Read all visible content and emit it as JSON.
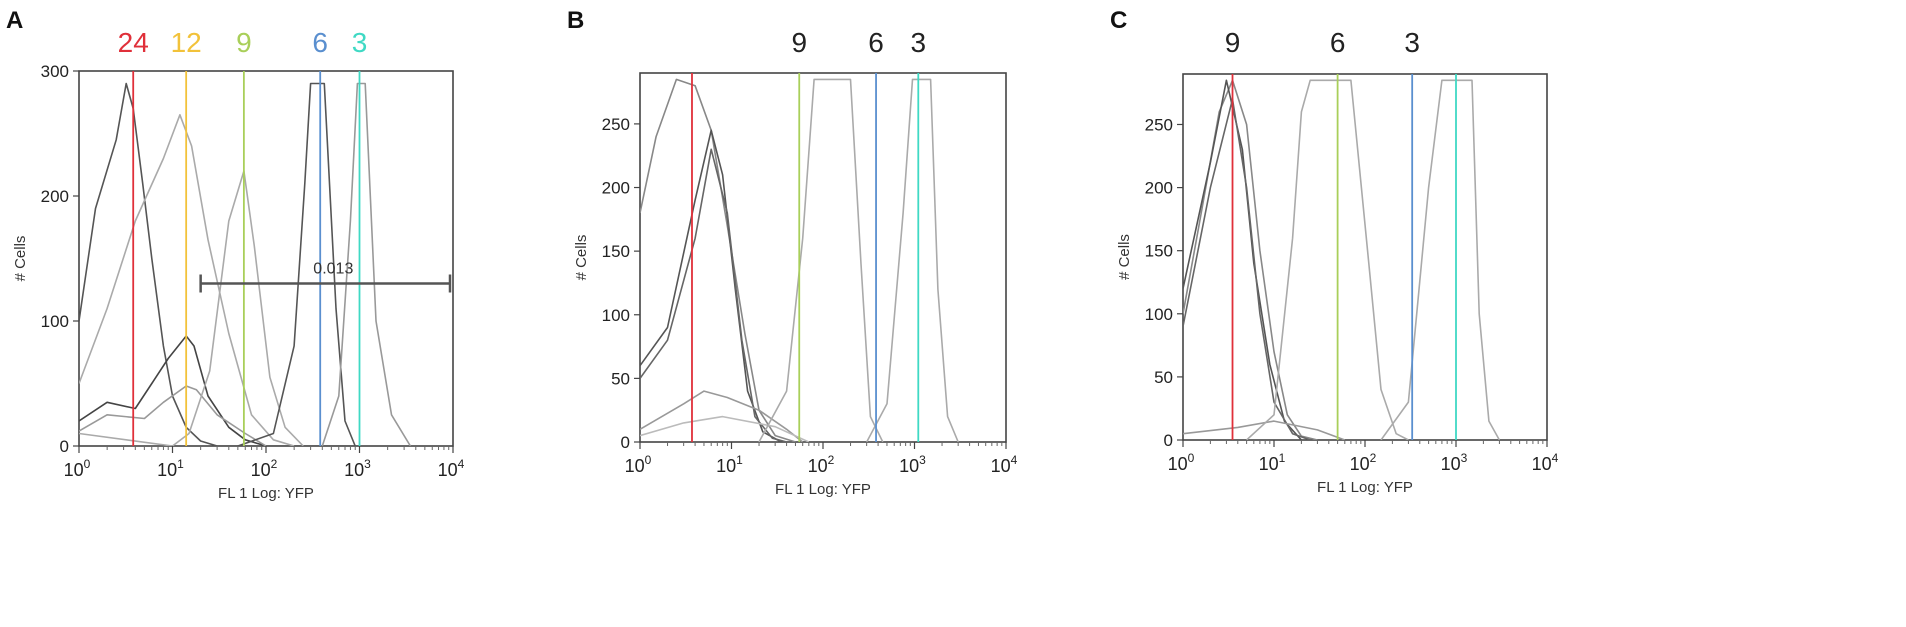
{
  "chart_data": [
    {
      "panel_label": "A",
      "type": "line",
      "xscale": "log",
      "xlim": [
        1,
        10000
      ],
      "ylim": [
        0,
        300
      ],
      "xlabel": "FL 1 Log: YFP",
      "ylabel": "# Cells",
      "x_tick_labels": [
        "10^0",
        "10^1",
        "10^2",
        "10^3",
        "10^4"
      ],
      "y_ticks": [
        0,
        100,
        200,
        300
      ],
      "markers": [
        {
          "label": "24",
          "x": 3.8,
          "color": "#e0303a"
        },
        {
          "label": "12",
          "x": 14,
          "color": "#f2c23a"
        },
        {
          "label": "9",
          "x": 58,
          "color": "#a9cf5a"
        },
        {
          "label": "6",
          "x": 380,
          "color": "#5a8fcf"
        },
        {
          "label": "3",
          "x": 1000,
          "color": "#3fd9c4"
        }
      ],
      "gate": {
        "label": "0.013",
        "x_start": 20,
        "x_end": 10000,
        "y": 130
      },
      "series": [
        {
          "color": "#555555",
          "points": [
            [
              1,
              100
            ],
            [
              1.5,
              190
            ],
            [
              2.5,
              245
            ],
            [
              3.2,
              290
            ],
            [
              3.8,
              270
            ],
            [
              4.8,
              210
            ],
            [
              6,
              150
            ],
            [
              8,
              80
            ],
            [
              10,
              40
            ],
            [
              14,
              15
            ],
            [
              20,
              4
            ],
            [
              30,
              0
            ],
            [
              1000,
              0
            ]
          ]
        },
        {
          "color": "#444444",
          "points": [
            [
              1,
              20
            ],
            [
              2,
              35
            ],
            [
              4,
              30
            ],
            [
              6,
              50
            ],
            [
              9,
              70
            ],
            [
              14,
              88
            ],
            [
              17,
              80
            ],
            [
              24,
              40
            ],
            [
              40,
              15
            ],
            [
              60,
              5
            ],
            [
              100,
              0
            ]
          ]
        },
        {
          "color": "#999999",
          "points": [
            [
              1,
              12
            ],
            [
              2,
              25
            ],
            [
              5,
              22
            ],
            [
              8,
              35
            ],
            [
              14,
              48
            ],
            [
              18,
              45
            ],
            [
              30,
              25
            ],
            [
              60,
              10
            ],
            [
              100,
              0
            ]
          ]
        },
        {
          "color": "#aaaaaa",
          "points": [
            [
              1,
              50
            ],
            [
              2,
              110
            ],
            [
              4,
              180
            ],
            [
              8,
              230
            ],
            [
              12,
              265
            ],
            [
              16,
              240
            ],
            [
              24,
              165
            ],
            [
              40,
              90
            ],
            [
              70,
              25
            ],
            [
              120,
              5
            ],
            [
              200,
              0
            ]
          ]
        },
        {
          "color": "#aaaaaa",
          "points": [
            [
              1,
              10
            ],
            [
              10,
              0
            ],
            [
              15,
              10
            ],
            [
              25,
              60
            ],
            [
              40,
              180
            ],
            [
              58,
              220
            ],
            [
              75,
              160
            ],
            [
              110,
              55
            ],
            [
              160,
              15
            ],
            [
              250,
              0
            ]
          ]
        },
        {
          "color": "#555555",
          "points": [
            [
              50,
              0
            ],
            [
              120,
              10
            ],
            [
              200,
              80
            ],
            [
              260,
              210
            ],
            [
              300,
              290
            ],
            [
              420,
              290
            ],
            [
              560,
              110
            ],
            [
              700,
              20
            ],
            [
              900,
              0
            ]
          ]
        },
        {
          "color": "#999999",
          "points": [
            [
              400,
              0
            ],
            [
              600,
              40
            ],
            [
              800,
              180
            ],
            [
              950,
              290
            ],
            [
              1150,
              290
            ],
            [
              1500,
              100
            ],
            [
              2200,
              25
            ],
            [
              3500,
              0
            ]
          ]
        }
      ]
    },
    {
      "panel_label": "B",
      "type": "line",
      "xscale": "log",
      "xlim": [
        1,
        10000
      ],
      "ylim": [
        0,
        290
      ],
      "xlabel": "FL 1 Log: YFP",
      "ylabel": "# Cells",
      "x_tick_labels": [
        "10^0",
        "10^1",
        "10^2",
        "10^3",
        "10^4"
      ],
      "y_ticks": [
        0,
        50,
        100,
        150,
        200,
        250
      ],
      "markers": [
        {
          "label": "",
          "x": 3.7,
          "color": "#e0303a"
        },
        {
          "label": "9",
          "x": 55,
          "color": "#a9cf5a"
        },
        {
          "label": "6",
          "x": 380,
          "color": "#5a8fcf"
        },
        {
          "label": "3",
          "x": 1100,
          "color": "#3fd9c4"
        }
      ],
      "series": [
        {
          "color": "#888888",
          "points": [
            [
              1,
              180
            ],
            [
              1.5,
              240
            ],
            [
              2.5,
              285
            ],
            [
              4,
              280
            ],
            [
              6,
              245
            ],
            [
              9,
              170
            ],
            [
              14,
              85
            ],
            [
              20,
              25
            ],
            [
              30,
              5
            ],
            [
              50,
              0
            ]
          ]
        },
        {
          "color": "#555555",
          "points": [
            [
              1,
              60
            ],
            [
              2,
              90
            ],
            [
              4,
              190
            ],
            [
              6,
              245
            ],
            [
              8,
              210
            ],
            [
              11,
              120
            ],
            [
              15,
              40
            ],
            [
              22,
              8
            ],
            [
              35,
              0
            ]
          ]
        },
        {
          "color": "#666666",
          "points": [
            [
              1,
              50
            ],
            [
              2,
              80
            ],
            [
              4,
              160
            ],
            [
              6,
              230
            ],
            [
              9,
              180
            ],
            [
              13,
              80
            ],
            [
              18,
              20
            ],
            [
              28,
              3
            ],
            [
              40,
              0
            ]
          ]
        },
        {
          "color": "#999999",
          "points": [
            [
              1,
              10
            ],
            [
              3,
              30
            ],
            [
              5,
              40
            ],
            [
              9,
              35
            ],
            [
              20,
              25
            ],
            [
              40,
              10
            ],
            [
              60,
              0
            ]
          ]
        },
        {
          "color": "#bbbbbb",
          "points": [
            [
              1,
              5
            ],
            [
              3,
              15
            ],
            [
              8,
              20
            ],
            [
              30,
              12
            ],
            [
              70,
              0
            ]
          ]
        },
        {
          "color": "#aaaaaa",
          "points": [
            [
              20,
              0
            ],
            [
              40,
              40
            ],
            [
              60,
              160
            ],
            [
              80,
              285
            ],
            [
              200,
              285
            ],
            [
              260,
              140
            ],
            [
              330,
              20
            ],
            [
              450,
              0
            ]
          ]
        },
        {
          "color": "#aaaaaa",
          "points": [
            [
              300,
              0
            ],
            [
              500,
              30
            ],
            [
              750,
              180
            ],
            [
              950,
              285
            ],
            [
              1500,
              285
            ],
            [
              1800,
              120
            ],
            [
              2300,
              20
            ],
            [
              3000,
              0
            ]
          ]
        }
      ]
    },
    {
      "panel_label": "C",
      "type": "line",
      "xscale": "log",
      "xlim": [
        1,
        10000
      ],
      "ylim": [
        0,
        290
      ],
      "xlabel": "FL 1 Log: YFP",
      "ylabel": "# Cells",
      "x_tick_labels": [
        "10^0",
        "10^1",
        "10^2",
        "10^3",
        "10^4"
      ],
      "y_ticks": [
        0,
        50,
        100,
        150,
        200,
        250
      ],
      "markers": [
        {
          "label": "9",
          "x": 3.5,
          "color": "#e0303a"
        },
        {
          "label": "6",
          "x": 50,
          "color": "#a9cf5a"
        },
        {
          "label": "3",
          "x": 330,
          "color": "#5a8fcf"
        },
        {
          "label": "",
          "x": 1000,
          "color": "#3fd9c4"
        }
      ],
      "series": [
        {
          "color": "#888888",
          "points": [
            [
              1,
              100
            ],
            [
              1.5,
              170
            ],
            [
              2.5,
              260
            ],
            [
              3.5,
              285
            ],
            [
              5,
              250
            ],
            [
              7,
              150
            ],
            [
              10,
              70
            ],
            [
              14,
              20
            ],
            [
              20,
              3
            ],
            [
              30,
              0
            ]
          ]
        },
        {
          "color": "#555555",
          "points": [
            [
              1,
              120
            ],
            [
              2,
              220
            ],
            [
              3,
              285
            ],
            [
              4.5,
              230
            ],
            [
              6,
              140
            ],
            [
              9,
              60
            ],
            [
              13,
              15
            ],
            [
              20,
              0
            ]
          ]
        },
        {
          "color": "#666666",
          "points": [
            [
              1,
              90
            ],
            [
              2,
              200
            ],
            [
              3.5,
              270
            ],
            [
              5,
              200
            ],
            [
              7,
              100
            ],
            [
              10,
              30
            ],
            [
              16,
              5
            ],
            [
              25,
              0
            ]
          ]
        },
        {
          "color": "#999999",
          "points": [
            [
              1,
              5
            ],
            [
              4,
              10
            ],
            [
              10,
              15
            ],
            [
              30,
              8
            ],
            [
              60,
              0
            ]
          ]
        },
        {
          "color": "#aaaaaa",
          "points": [
            [
              5,
              0
            ],
            [
              10,
              20
            ],
            [
              16,
              160
            ],
            [
              20,
              260
            ],
            [
              25,
              285
            ],
            [
              70,
              285
            ],
            [
              110,
              140
            ],
            [
              150,
              40
            ],
            [
              220,
              5
            ],
            [
              300,
              0
            ]
          ]
        },
        {
          "color": "#aaaaaa",
          "points": [
            [
              150,
              0
            ],
            [
              300,
              30
            ],
            [
              500,
              200
            ],
            [
              700,
              285
            ],
            [
              1500,
              285
            ],
            [
              1800,
              100
            ],
            [
              2300,
              15
            ],
            [
              3000,
              0
            ]
          ]
        }
      ]
    }
  ]
}
